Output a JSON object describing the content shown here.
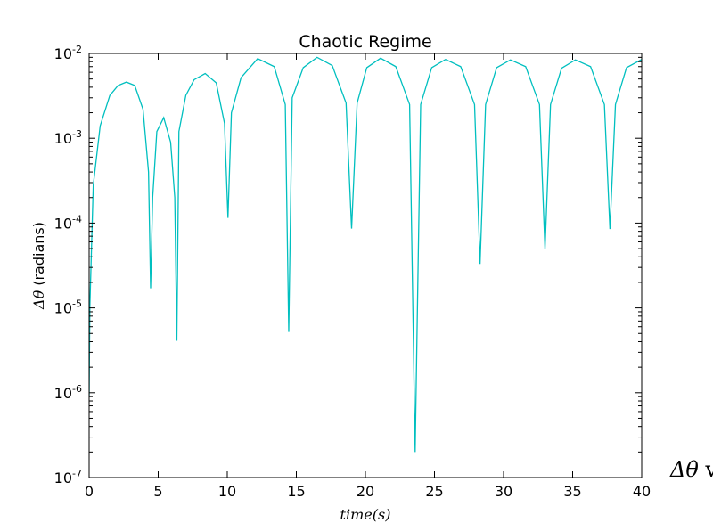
{
  "chart_data": {
    "type": "line",
    "title": "Chaotic Regime",
    "xlabel": "time(s)",
    "ylabel_symbol": "Δθ",
    "ylabel_unit": "(radians)",
    "yscale": "log",
    "xlim": [
      0,
      40
    ],
    "ylim": [
      1e-07,
      0.01
    ],
    "grid": false,
    "x_ticks": [
      "0",
      "5",
      "10",
      "15",
      "20",
      "25",
      "30",
      "35",
      "40"
    ],
    "y_ticks": [
      {
        "base": "10",
        "exp": "-7",
        "value": 1e-07
      },
      {
        "base": "10",
        "exp": "-6",
        "value": 1e-06
      },
      {
        "base": "10",
        "exp": "-5",
        "value": 1e-05
      },
      {
        "base": "10",
        "exp": "-4",
        "value": 0.0001
      },
      {
        "base": "10",
        "exp": "-3",
        "value": 0.001
      },
      {
        "base": "10",
        "exp": "-2",
        "value": 0.01
      }
    ],
    "line_color": "#00bfbf",
    "series": [
      {
        "x": [
          0.0,
          0.05,
          0.3,
          0.8,
          1.5,
          2.1,
          2.7,
          3.3,
          3.9,
          4.3,
          4.45,
          4.6,
          4.9,
          5.4,
          5.9,
          6.2,
          6.35,
          6.5,
          7.0,
          7.6,
          8.4,
          9.2,
          9.8,
          10.05,
          10.3,
          11.0,
          12.2,
          13.4,
          14.2,
          14.45,
          14.7,
          15.5,
          16.5,
          17.6,
          18.6,
          19.0,
          19.4,
          20.1,
          21.1,
          22.2,
          23.2,
          23.6,
          24.0,
          24.8,
          25.8,
          26.9,
          27.9,
          28.3,
          28.7,
          29.5,
          30.5,
          31.6,
          32.6,
          33.0,
          33.4,
          34.2,
          35.2,
          36.3,
          37.3,
          37.7,
          38.1,
          38.9,
          40.0
        ],
        "y": [
          9e-07,
          1e-05,
          0.00028,
          0.0014,
          0.0032,
          0.0042,
          0.0046,
          0.0042,
          0.0022,
          0.0004,
          1.7e-05,
          0.0002,
          0.0012,
          0.00175,
          0.0009,
          0.0002,
          4.1e-06,
          0.0012,
          0.0032,
          0.0049,
          0.0058,
          0.0045,
          0.0015,
          0.000115,
          0.002,
          0.0052,
          0.0087,
          0.007,
          0.0025,
          5.2e-06,
          0.003,
          0.0068,
          0.009,
          0.0072,
          0.0026,
          8.6e-05,
          0.0026,
          0.0068,
          0.0088,
          0.007,
          0.0025,
          2e-07,
          0.0025,
          0.0068,
          0.0085,
          0.007,
          0.0025,
          3.3e-05,
          0.0025,
          0.0068,
          0.0084,
          0.007,
          0.0025,
          4.9e-05,
          0.0025,
          0.0067,
          0.0084,
          0.007,
          0.0025,
          8.5e-05,
          0.0025,
          0.0068,
          0.0085
        ]
      }
    ]
  },
  "overflow_caption": {
    "symbol": "Δθ",
    "text": " v"
  }
}
